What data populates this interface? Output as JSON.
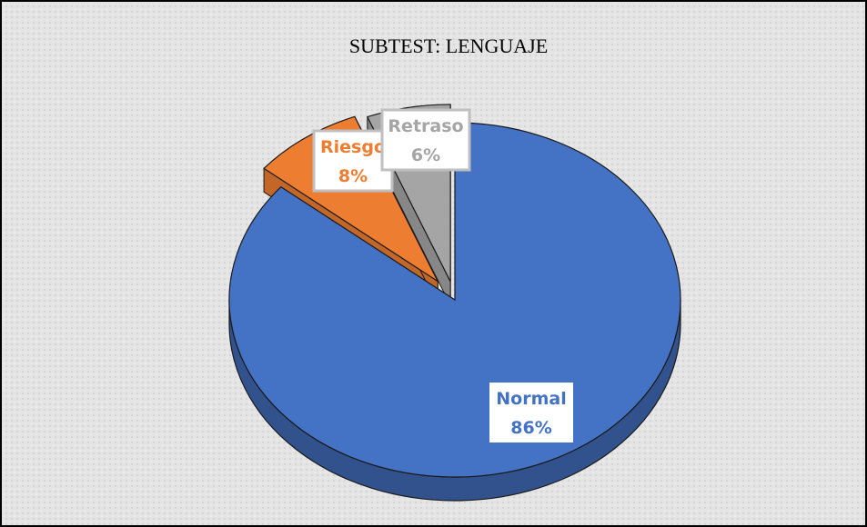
{
  "chart_data": {
    "type": "pie",
    "title": "SUBTEST: LENGUAJE",
    "categories": [
      "Normal",
      "Riesgo",
      "Retraso"
    ],
    "values": [
      86,
      8,
      6
    ],
    "value_labels": [
      "86%",
      "8%",
      "6%"
    ],
    "colors": [
      "#4472c4",
      "#ed7d31",
      "#a5a5a5"
    ]
  }
}
